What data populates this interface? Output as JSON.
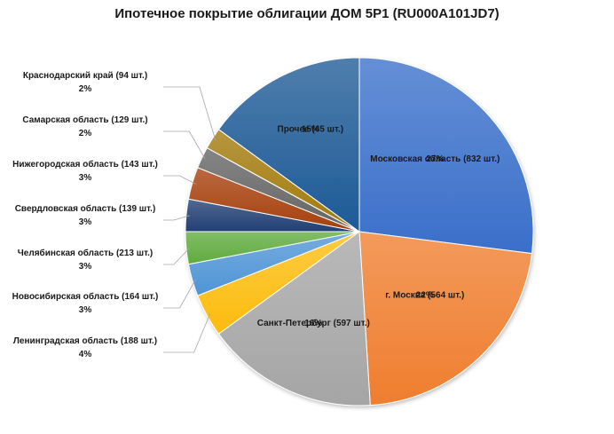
{
  "chart_data": {
    "type": "pie",
    "title": "Ипотечное покрытие облигации ДОМ 5Р1 (RU000A101JD7)",
    "slices": [
      {
        "name": "Московская область (832 шт.)",
        "value": 27,
        "label_pct": "27%",
        "color": "#3a6fca"
      },
      {
        "name": "г. Москва (564 шт.)",
        "value": 22,
        "label_pct": "22%",
        "color": "#ef7d2e"
      },
      {
        "name": "Санкт-Петербург (597 шт.)",
        "value": 16,
        "label_pct": "16%",
        "color": "#a5a5a5"
      },
      {
        "name": "Ленинградская область (188 шт.)",
        "value": 4,
        "label_pct": "4%",
        "color": "#fcbc0d"
      },
      {
        "name": "Новосибирская область (164 шт.)",
        "value": 3,
        "label_pct": "3%",
        "color": "#4f95d6"
      },
      {
        "name": "Челябинская область (213 шт.)",
        "value": 3,
        "label_pct": "3%",
        "color": "#5fab3d"
      },
      {
        "name": "Свердловская область (139 шт.)",
        "value": 3,
        "label_pct": "3%",
        "color": "#213f73"
      },
      {
        "name": "Нижегородская область (143 шт.)",
        "value": 3,
        "label_pct": "3%",
        "color": "#a63f0c"
      },
      {
        "name": "Самарская область (129 шт.)",
        "value": 2,
        "label_pct": "2%",
        "color": "#646464"
      },
      {
        "name": "Краснодарский край (94 шт.)",
        "value": 2,
        "label_pct": "2%",
        "color": "#a27a0a"
      },
      {
        "name": "Прочее (45 шт.)",
        "value": 15,
        "label_pct": "15%",
        "color": "#1d5a96"
      }
    ]
  }
}
